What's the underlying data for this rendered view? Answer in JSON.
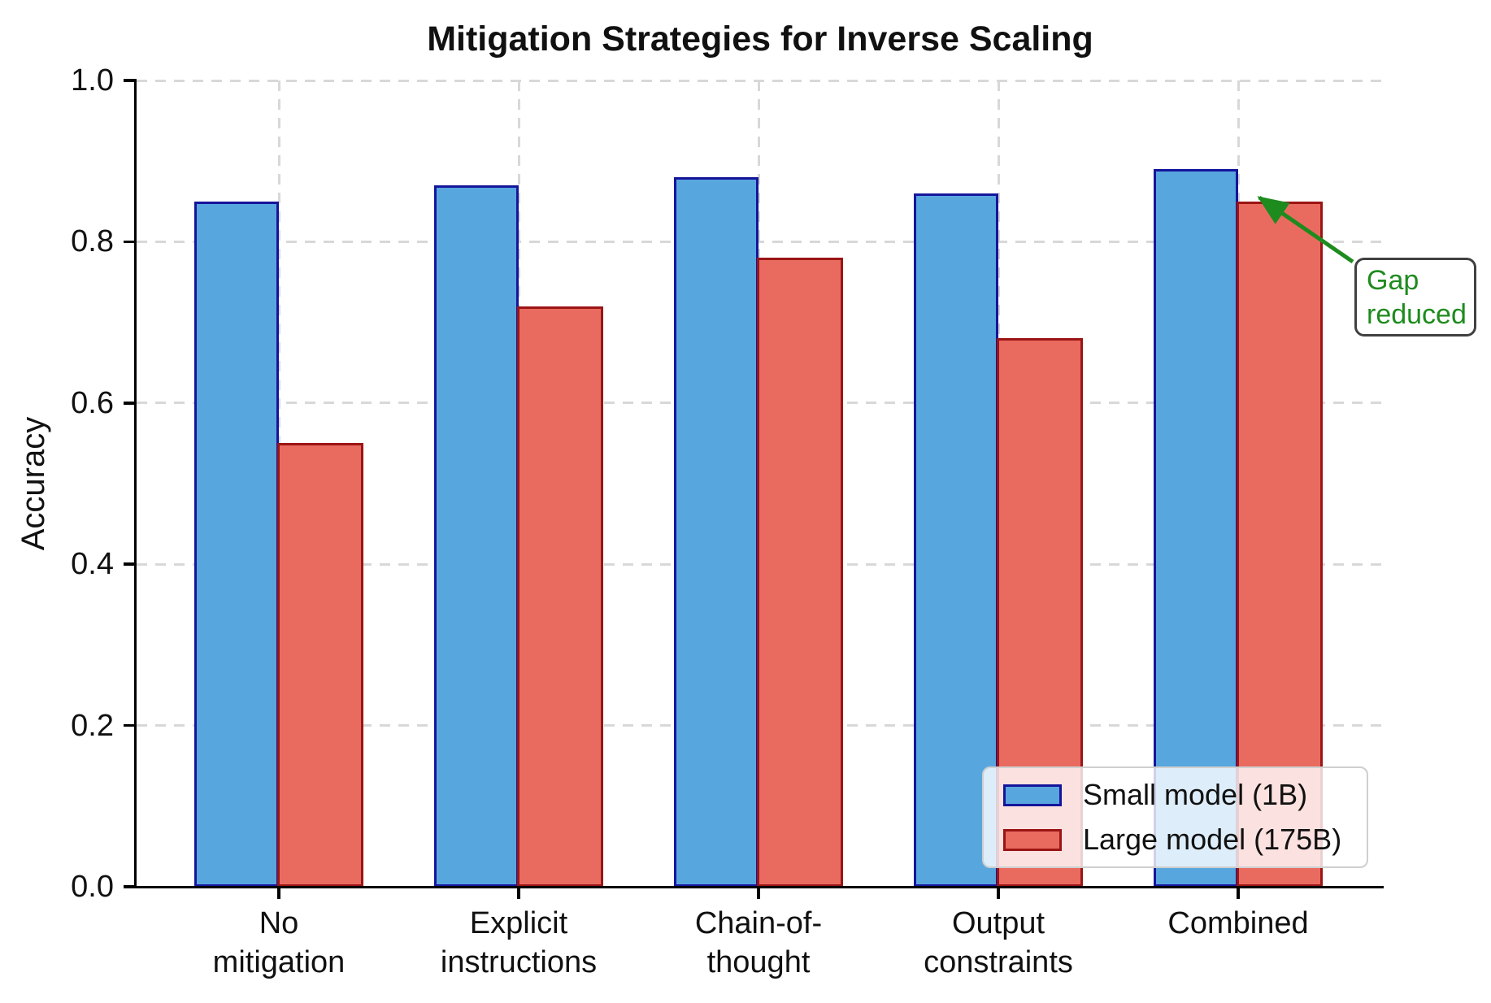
{
  "title": "Mitigation Strategies for Inverse Scaling",
  "chart_data": {
    "type": "bar",
    "title": "Mitigation Strategies for Inverse Scaling",
    "xlabel": "",
    "ylabel": "Accuracy",
    "categories": [
      "No\nmitigation",
      "Explicit\ninstructions",
      "Chain-of-\nthought",
      "Output\nconstraints",
      "Combined"
    ],
    "series": [
      {
        "name": "Small model (1B)",
        "values": [
          0.85,
          0.87,
          0.88,
          0.86,
          0.89
        ],
        "fill_color": "#58A6DE",
        "edge_color": "#15159B"
      },
      {
        "name": "Large model (175B)",
        "values": [
          0.55,
          0.72,
          0.78,
          0.68,
          0.85
        ],
        "fill_color": "#E96B60",
        "edge_color": "#9B1515"
      }
    ],
    "ylim": [
      0.0,
      1.0
    ],
    "yticks": [
      0.0,
      0.2,
      0.4,
      0.6,
      0.8,
      1.0
    ],
    "grid": true,
    "grid_style": "dashed, both axes",
    "legend_position": "lower right",
    "annotation": {
      "text": "Gap reduced",
      "lines": [
        "Gap",
        "reduced"
      ],
      "color": "#1E8B1E",
      "points_to": "top of Combined bars"
    }
  },
  "colors": {
    "grid": "#D8D8D8",
    "axis": "#000000",
    "legend_border": "#CFCFCF",
    "annotation_border": "#404040",
    "annotation_green": "#1E8B1E"
  }
}
